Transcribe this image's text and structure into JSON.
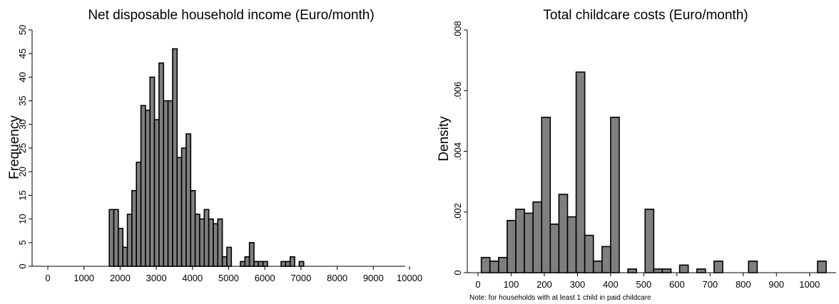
{
  "chart_data": [
    {
      "type": "bar",
      "title": "Net disposable household income (Euro/month)",
      "xlabel": "",
      "ylabel": "Frequency",
      "xlim": [
        0,
        10000
      ],
      "ylim": [
        0,
        50
      ],
      "x_ticks": [
        "0",
        "1000",
        "2000",
        "3000",
        "4000",
        "5000",
        "6000",
        "7000",
        "8000",
        "9000",
        "10000"
      ],
      "y_ticks": [
        "0",
        "5",
        "10",
        "15",
        "20",
        "25",
        "30",
        "35",
        "40",
        "45",
        "50"
      ],
      "bin_width": 125,
      "bins": [
        {
          "x": 1700,
          "value": 12
        },
        {
          "x": 1825,
          "value": 12
        },
        {
          "x": 1950,
          "value": 8
        },
        {
          "x": 2075,
          "value": 4
        },
        {
          "x": 2200,
          "value": 11
        },
        {
          "x": 2325,
          "value": 16
        },
        {
          "x": 2450,
          "value": 22
        },
        {
          "x": 2575,
          "value": 34
        },
        {
          "x": 2700,
          "value": 33
        },
        {
          "x": 2825,
          "value": 40
        },
        {
          "x": 2950,
          "value": 31
        },
        {
          "x": 3075,
          "value": 43
        },
        {
          "x": 3200,
          "value": 35
        },
        {
          "x": 3325,
          "value": 35
        },
        {
          "x": 3450,
          "value": 46
        },
        {
          "x": 3575,
          "value": 23
        },
        {
          "x": 3700,
          "value": 25
        },
        {
          "x": 3825,
          "value": 28
        },
        {
          "x": 3950,
          "value": 16
        },
        {
          "x": 4075,
          "value": 11
        },
        {
          "x": 4200,
          "value": 10
        },
        {
          "x": 4325,
          "value": 12
        },
        {
          "x": 4450,
          "value": 10
        },
        {
          "x": 4575,
          "value": 9
        },
        {
          "x": 4700,
          "value": 10
        },
        {
          "x": 4825,
          "value": 2
        },
        {
          "x": 4950,
          "value": 4
        },
        {
          "x": 5325,
          "value": 1
        },
        {
          "x": 5450,
          "value": 2
        },
        {
          "x": 5575,
          "value": 5
        },
        {
          "x": 5700,
          "value": 1
        },
        {
          "x": 5825,
          "value": 1
        },
        {
          "x": 5950,
          "value": 1
        },
        {
          "x": 6450,
          "value": 1
        },
        {
          "x": 6575,
          "value": 1
        },
        {
          "x": 6700,
          "value": 2
        },
        {
          "x": 6950,
          "value": 1
        }
      ]
    },
    {
      "type": "bar",
      "title": "Total childcare costs (Euro/month)",
      "xlabel": "",
      "ylabel": "Density",
      "xlim": [
        0,
        1050
      ],
      "ylim": [
        0,
        0.008
      ],
      "x_ticks": [
        "0",
        "100",
        "200",
        "300",
        "400",
        "500",
        "600",
        "700",
        "800",
        "900",
        "1000"
      ],
      "y_ticks": [
        "0",
        ".002",
        ".004",
        ".006",
        ".008"
      ],
      "bin_width": 26,
      "bins": [
        {
          "x": 10,
          "value": 0.0005
        },
        {
          "x": 36,
          "value": 0.00038
        },
        {
          "x": 62,
          "value": 0.0005
        },
        {
          "x": 88,
          "value": 0.00172
        },
        {
          "x": 114,
          "value": 0.00209
        },
        {
          "x": 140,
          "value": 0.00196
        },
        {
          "x": 166,
          "value": 0.00233
        },
        {
          "x": 192,
          "value": 0.00512
        },
        {
          "x": 218,
          "value": 0.0016
        },
        {
          "x": 244,
          "value": 0.00258
        },
        {
          "x": 270,
          "value": 0.00184
        },
        {
          "x": 296,
          "value": 0.00661
        },
        {
          "x": 322,
          "value": 0.00123
        },
        {
          "x": 348,
          "value": 0.00038
        },
        {
          "x": 374,
          "value": 0.00086
        },
        {
          "x": 400,
          "value": 0.00512
        },
        {
          "x": 452,
          "value": 0.00012
        },
        {
          "x": 504,
          "value": 0.00209
        },
        {
          "x": 530,
          "value": 0.00012
        },
        {
          "x": 556,
          "value": 0.00012
        },
        {
          "x": 608,
          "value": 0.00025
        },
        {
          "x": 660,
          "value": 0.00012
        },
        {
          "x": 712,
          "value": 0.00038
        },
        {
          "x": 816,
          "value": 0.00038
        },
        {
          "x": 1024,
          "value": 0.00038
        }
      ],
      "note": "Note: for households with at least 1 child in paid childcare"
    }
  ]
}
